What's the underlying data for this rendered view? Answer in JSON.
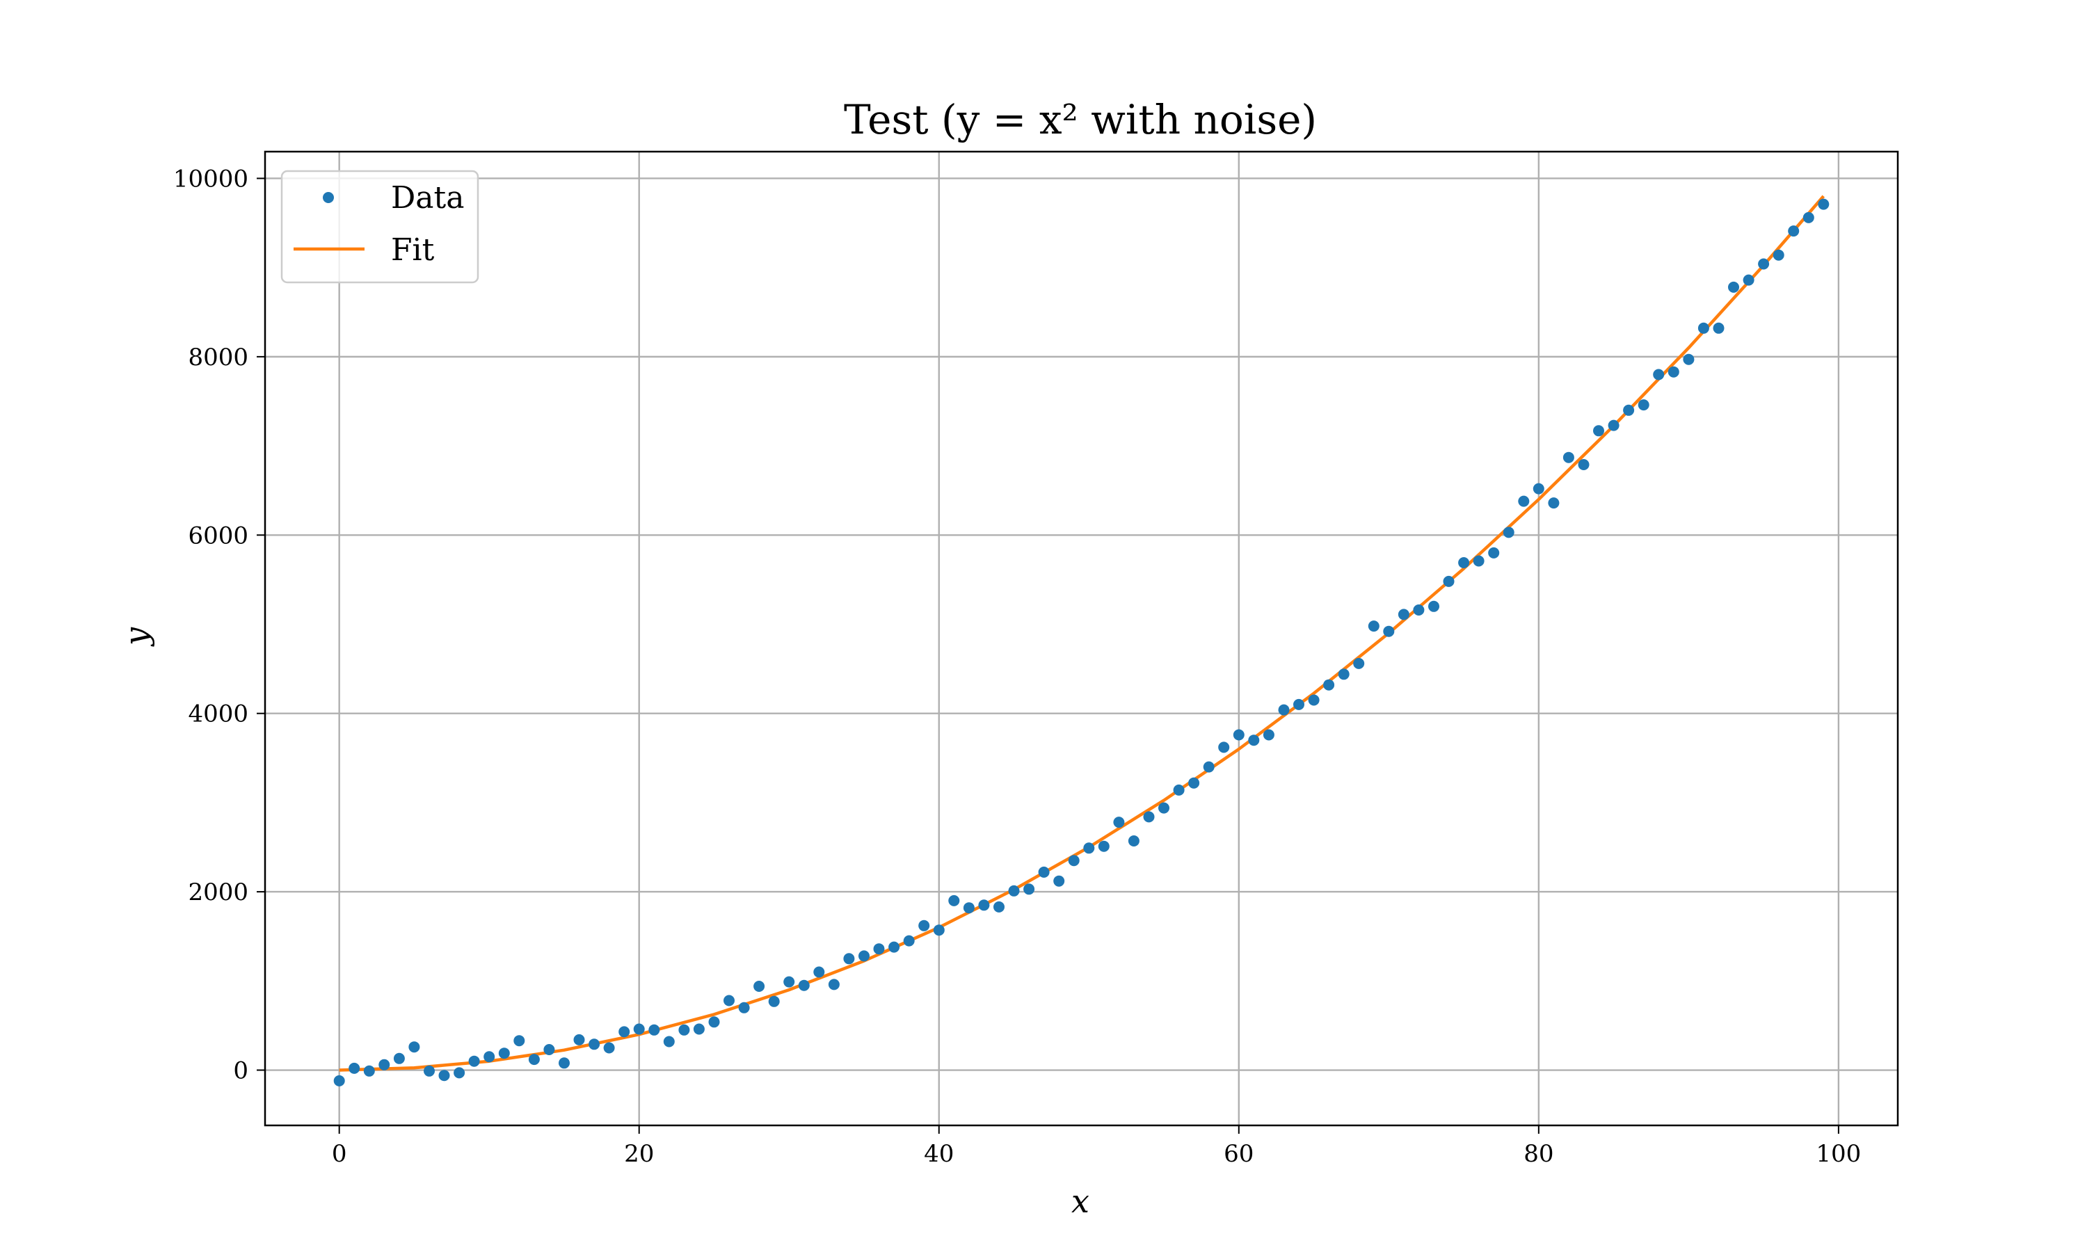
{
  "chart_data": {
    "type": "scatter",
    "title": "Test (y = x² with noise)",
    "xlabel": "x",
    "ylabel": "y",
    "xlim": [
      -4.95,
      103.95
    ],
    "ylim": [
      -620,
      10300
    ],
    "xticks": [
      0,
      20,
      40,
      60,
      80,
      100
    ],
    "yticks": [
      0,
      2000,
      4000,
      6000,
      8000,
      10000
    ],
    "grid": true,
    "legend_position": "upper-left",
    "series": [
      {
        "name": "Data",
        "kind": "points",
        "color": "#1f77b4",
        "x": [
          0,
          1,
          2,
          3,
          4,
          5,
          6,
          7,
          8,
          9,
          10,
          11,
          12,
          13,
          14,
          15,
          16,
          17,
          18,
          19,
          20,
          21,
          22,
          23,
          24,
          25,
          26,
          27,
          28,
          29,
          30,
          31,
          32,
          33,
          34,
          35,
          36,
          37,
          38,
          39,
          40,
          41,
          42,
          43,
          44,
          45,
          46,
          47,
          48,
          49,
          50,
          51,
          52,
          53,
          54,
          55,
          56,
          57,
          58,
          59,
          60,
          61,
          62,
          63,
          64,
          65,
          66,
          67,
          68,
          69,
          70,
          71,
          72,
          73,
          74,
          75,
          76,
          77,
          78,
          79,
          80,
          81,
          82,
          83,
          84,
          85,
          86,
          87,
          88,
          89,
          90,
          91,
          92,
          93,
          94,
          95,
          96,
          97,
          98,
          99
        ],
        "y": [
          -120,
          20,
          -10,
          60,
          130,
          260,
          -10,
          -60,
          -30,
          100,
          150,
          190,
          330,
          120,
          230,
          80,
          340,
          290,
          250,
          430,
          460,
          450,
          320,
          450,
          460,
          540,
          780,
          700,
          940,
          770,
          990,
          950,
          1100,
          960,
          1250,
          1280,
          1360,
          1380,
          1450,
          1620,
          1570,
          1900,
          1820,
          1850,
          1830,
          2010,
          2030,
          2220,
          2120,
          2350,
          2490,
          2510,
          2780,
          2570,
          2840,
          2940,
          3140,
          3220,
          3400,
          3620,
          3760,
          3700,
          3760,
          4040,
          4100,
          4150,
          4320,
          4440,
          4560,
          4980,
          4920,
          5110,
          5160,
          5200,
          5480,
          5690,
          5710,
          5800,
          6030,
          6380,
          6520,
          6360,
          6870,
          6790,
          7170,
          7230,
          7400,
          7460,
          7800,
          7830,
          7970,
          8320,
          8320,
          8780,
          8860,
          9040,
          9140,
          9410,
          9560,
          9710
        ]
      },
      {
        "name": "Fit",
        "kind": "line",
        "color": "#ff7f0e",
        "x": [
          0,
          5,
          10,
          15,
          20,
          25,
          30,
          35,
          40,
          45,
          50,
          55,
          60,
          65,
          70,
          75,
          80,
          85,
          90,
          95,
          99
        ],
        "y": [
          0,
          25,
          100,
          225,
          400,
          625,
          900,
          1225,
          1600,
          2025,
          2500,
          3025,
          3600,
          4225,
          4900,
          5625,
          6400,
          7225,
          8100,
          9025,
          9801
        ]
      }
    ]
  }
}
